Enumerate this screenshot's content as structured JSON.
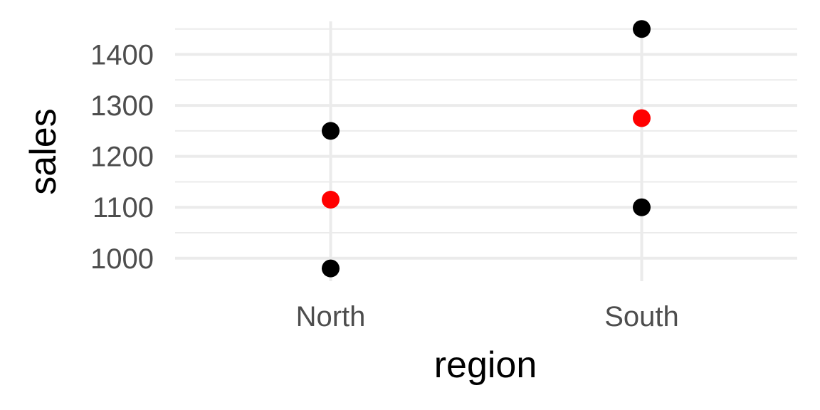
{
  "chart_data": {
    "type": "scatter",
    "xlabel": "region",
    "ylabel": "sales",
    "categories": [
      "North",
      "South"
    ],
    "ylim": [
      955,
      1465
    ],
    "y_ticks": [
      1000,
      1100,
      1200,
      1300,
      1400
    ],
    "grid": true,
    "series": [
      {
        "color": "#000000",
        "points": [
          {
            "x": "North",
            "y": 1250
          },
          {
            "x": "North",
            "y": 980
          },
          {
            "x": "South",
            "y": 1450
          },
          {
            "x": "South",
            "y": 1100
          }
        ]
      },
      {
        "color": "#ff0000",
        "points": [
          {
            "x": "North",
            "y": 1115
          },
          {
            "x": "South",
            "y": 1275
          }
        ]
      }
    ]
  }
}
